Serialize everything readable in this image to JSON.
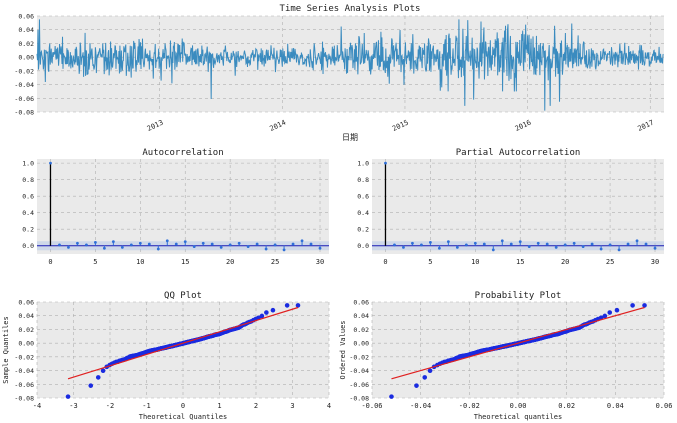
{
  "colors": {
    "panel_bg": "#eaeaea",
    "grid": "#b0b0b0",
    "ts_line": "#3a8bbf",
    "stem": "#2f6fd8",
    "zero_line": "#1c1cb5",
    "qq_point": "#1a2be0",
    "qq_line": "#e02020"
  },
  "chart_data": [
    {
      "id": "ts",
      "type": "line",
      "title": "Time Series Analysis Plots",
      "xlabel": "日期",
      "ylabel": "",
      "xlim": [
        0,
        1278
      ],
      "ylim": [
        -0.08,
        0.06
      ],
      "yticks": [
        0.06,
        0.04,
        0.02,
        0.0,
        -0.02,
        -0.04,
        -0.06,
        -0.08
      ],
      "ytick_labels": [
        "0.06",
        "0.04",
        "0.02",
        "0.00",
        "-0.02",
        "-0.04",
        "-0.06",
        "-0.08"
      ],
      "xticks": [
        250,
        500,
        750,
        1000,
        1250
      ],
      "xtick_labels": [
        "2013",
        "2014",
        "2015",
        "2016",
        "2017"
      ],
      "series": [
        {
          "name": "returns",
          "n": 1278,
          "seed": 20170,
          "volatility_regimes": [
            {
              "from": 0,
              "to": 300,
              "sd": 0.0135
            },
            {
              "from": 300,
              "to": 620,
              "sd": 0.0085
            },
            {
              "from": 620,
              "to": 820,
              "sd": 0.0145
            },
            {
              "from": 820,
              "to": 1000,
              "sd": 0.022
            },
            {
              "from": 1000,
              "to": 1130,
              "sd": 0.016
            },
            {
              "from": 1130,
              "to": 1278,
              "sd": 0.008
            }
          ],
          "spikes": [
            {
              "i": 5,
              "v": 0.055
            },
            {
              "i": 355,
              "v": -0.061
            },
            {
              "i": 860,
              "v": 0.055
            },
            {
              "i": 878,
              "v": 0.054
            },
            {
              "i": 872,
              "v": -0.071
            },
            {
              "i": 890,
              "v": -0.062
            },
            {
              "i": 905,
              "v": 0.052
            },
            {
              "i": 1035,
              "v": -0.078
            },
            {
              "i": 1046,
              "v": -0.071
            },
            {
              "i": 1065,
              "v": -0.065
            },
            {
              "i": 1090,
              "v": 0.049
            }
          ]
        }
      ]
    },
    {
      "id": "acf",
      "type": "stem",
      "title": "Autocorrelation",
      "xlim": [
        -1.5,
        31
      ],
      "ylim": [
        -0.1,
        1.05
      ],
      "xticks": [
        0,
        5,
        10,
        15,
        20,
        25,
        30
      ],
      "xtick_labels": [
        "0",
        "5",
        "10",
        "15",
        "20",
        "25",
        "30"
      ],
      "yticks": [
        1.0,
        0.8,
        0.6,
        0.4,
        0.2,
        0.0
      ],
      "ytick_labels": [
        "1.0",
        "0.8",
        "0.6",
        "0.4",
        "0.2",
        "0.0"
      ],
      "lags": [
        0,
        1,
        2,
        3,
        4,
        5,
        6,
        7,
        8,
        9,
        10,
        11,
        12,
        13,
        14,
        15,
        16,
        17,
        18,
        19,
        20,
        21,
        22,
        23,
        24,
        25,
        26,
        27,
        28,
        29,
        30
      ],
      "values": [
        1.0,
        0.01,
        -0.02,
        0.03,
        0.01,
        0.04,
        -0.03,
        0.05,
        -0.02,
        0.01,
        0.03,
        0.02,
        -0.04,
        0.06,
        0.02,
        0.05,
        -0.01,
        0.03,
        0.02,
        -0.02,
        0.01,
        0.03,
        -0.01,
        0.02,
        -0.04,
        0.01,
        -0.05,
        0.02,
        0.06,
        0.02,
        -0.03
      ],
      "conf_band": 0.055
    },
    {
      "id": "pacf",
      "type": "stem",
      "title": "Partial Autocorrelation",
      "xlim": [
        -1.5,
        31
      ],
      "ylim": [
        -0.1,
        1.05
      ],
      "xticks": [
        0,
        5,
        10,
        15,
        20,
        25,
        30
      ],
      "xtick_labels": [
        "0",
        "5",
        "10",
        "15",
        "20",
        "25",
        "30"
      ],
      "yticks": [
        1.0,
        0.8,
        0.6,
        0.4,
        0.2,
        0.0
      ],
      "ytick_labels": [
        "1.0",
        "0.8",
        "0.6",
        "0.4",
        "0.2",
        "0.0"
      ],
      "lags": [
        0,
        1,
        2,
        3,
        4,
        5,
        6,
        7,
        8,
        9,
        10,
        11,
        12,
        13,
        14,
        15,
        16,
        17,
        18,
        19,
        20,
        21,
        22,
        23,
        24,
        25,
        26,
        27,
        28,
        29,
        30
      ],
      "values": [
        1.0,
        0.01,
        -0.02,
        0.03,
        0.01,
        0.04,
        -0.03,
        0.05,
        -0.02,
        0.01,
        0.03,
        0.02,
        -0.05,
        0.06,
        0.02,
        0.05,
        -0.01,
        0.03,
        0.02,
        -0.02,
        0.01,
        0.03,
        -0.01,
        0.02,
        -0.04,
        0.01,
        -0.05,
        0.02,
        0.06,
        0.02,
        -0.03
      ],
      "conf_band": 0.055
    },
    {
      "id": "qq",
      "type": "scatter",
      "title": "QQ Plot",
      "xlabel": "Theoretical Quantiles",
      "ylabel": "Sample Quantiles",
      "xlim": [
        -4,
        4
      ],
      "ylim": [
        -0.08,
        0.06
      ],
      "xticks": [
        -4,
        -3,
        -2,
        -1,
        0,
        1,
        2,
        3,
        4
      ],
      "xtick_labels": [
        "-4",
        "-3",
        "-2",
        "-1",
        "0",
        "1",
        "2",
        "3",
        "4"
      ],
      "yticks": [
        0.06,
        0.04,
        0.02,
        0.0,
        -0.02,
        -0.04,
        -0.06,
        -0.08
      ],
      "ytick_labels": [
        "0.06",
        "0.04",
        "0.02",
        "0.00",
        "-0.02",
        "-0.04",
        "-0.06",
        "-0.08"
      ],
      "theoretical_range": [
        -3.15,
        3.15
      ],
      "fit_line": {
        "slope": 0.0165,
        "intercept": 0.0
      },
      "tail_min": -0.078,
      "tail_max": 0.055
    },
    {
      "id": "prob",
      "type": "scatter",
      "title": "Probability Plot",
      "xlabel": "Theoretical quantiles",
      "ylabel": "Ordered Values",
      "xlim": [
        -0.06,
        0.06
      ],
      "ylim": [
        -0.08,
        0.06
      ],
      "xticks": [
        -0.06,
        -0.04,
        -0.02,
        0.0,
        0.02,
        0.04,
        0.06
      ],
      "xtick_labels": [
        "-0.06",
        "-0.04",
        "-0.02",
        "0.00",
        "0.02",
        "0.04",
        "0.06"
      ],
      "yticks": [
        0.06,
        0.04,
        0.02,
        0.0,
        -0.02,
        -0.04,
        -0.06,
        -0.08
      ],
      "ytick_labels": [
        "0.06",
        "0.04",
        "0.02",
        "0.00",
        "-0.02",
        "-0.04",
        "-0.06",
        "-0.08"
      ],
      "theoretical_range": [
        -0.052,
        0.052
      ],
      "fit_line": {
        "slope": 1.0,
        "intercept": 0.0
      },
      "tail_min": -0.078,
      "tail_max": 0.055
    }
  ]
}
